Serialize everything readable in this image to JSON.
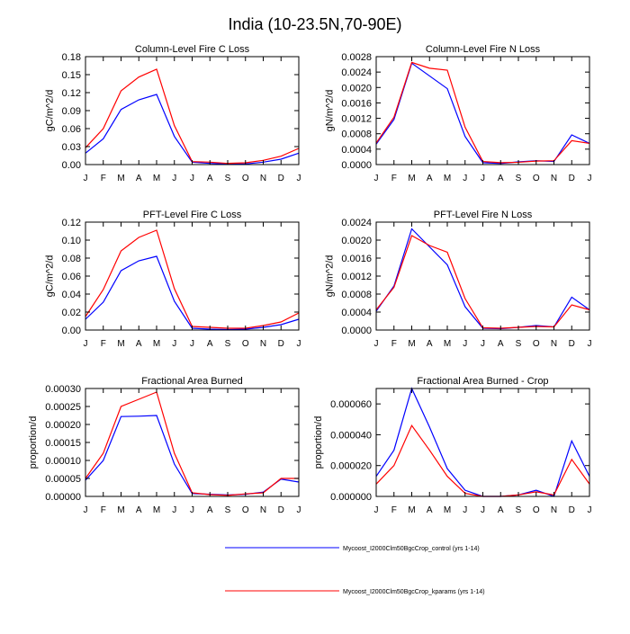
{
  "title": "India (10-23.5N,70-90E)",
  "legend": [
    {
      "label": "Mycoost_I2000Clm50BgcCrop_control (yrs 1-14)",
      "color": "#0000ff"
    },
    {
      "label": "Mycoost_I2000Clm50BgcCrop_kparams (yrs 1-14)",
      "color": "#ff0000"
    }
  ],
  "chart_data": [
    {
      "type": "line",
      "title": "Column-Level Fire C Loss",
      "ylabel": "gC/m^2/d",
      "ylim": [
        0,
        0.18
      ],
      "yticks": [
        "0.00",
        "0.03",
        "0.06",
        "0.09",
        "0.12",
        "0.15",
        "0.18"
      ],
      "categories": [
        "J",
        "F",
        "M",
        "A",
        "M",
        "J",
        "J",
        "A",
        "S",
        "O",
        "N",
        "D",
        "J"
      ],
      "series": [
        {
          "name": "control",
          "values": [
            0.019,
            0.043,
            0.092,
            0.108,
            0.117,
            0.047,
            0.004,
            0.002,
            0.001,
            0.001,
            0.004,
            0.009,
            0.019
          ]
        },
        {
          "name": "kparams",
          "values": [
            0.028,
            0.06,
            0.123,
            0.146,
            0.159,
            0.065,
            0.005,
            0.004,
            0.002,
            0.003,
            0.007,
            0.014,
            0.027
          ]
        }
      ]
    },
    {
      "type": "line",
      "title": "Column-Level Fire N Loss",
      "ylabel": "gN/m^2/d",
      "ylim": [
        0,
        0.0028
      ],
      "yticks": [
        "0.0000",
        "0.0004",
        "0.0008",
        "0.0012",
        "0.0016",
        "0.0020",
        "0.0024",
        "0.0028"
      ],
      "categories": [
        "J",
        "F",
        "M",
        "A",
        "M",
        "J",
        "J",
        "A",
        "S",
        "O",
        "N",
        "D",
        "J"
      ],
      "series": [
        {
          "name": "control",
          "values": [
            0.00053,
            0.00117,
            0.00263,
            0.0023,
            0.00197,
            0.00073,
            5e-05,
            3e-05,
            7e-05,
            0.0001,
            8e-05,
            0.00077,
            0.00055
          ]
        },
        {
          "name": "kparams",
          "values": [
            0.00056,
            0.00123,
            0.00265,
            0.0025,
            0.00245,
            0.00097,
            8e-05,
            5e-05,
            6e-05,
            9e-05,
            0.0001,
            0.00062,
            0.00055
          ]
        }
      ]
    },
    {
      "type": "line",
      "title": "PFT-Level Fire C Loss",
      "ylabel": "gC/m^2/d",
      "ylim": [
        0,
        0.12
      ],
      "yticks": [
        "0.00",
        "0.02",
        "0.04",
        "0.06",
        "0.08",
        "0.10",
        "0.12"
      ],
      "categories": [
        "J",
        "F",
        "M",
        "A",
        "M",
        "J",
        "J",
        "A",
        "S",
        "O",
        "N",
        "D",
        "J"
      ],
      "series": [
        {
          "name": "control",
          "values": [
            0.012,
            0.031,
            0.066,
            0.077,
            0.082,
            0.032,
            0.002,
            0.001,
            0.0005,
            0.001,
            0.003,
            0.006,
            0.012
          ]
        },
        {
          "name": "kparams",
          "values": [
            0.015,
            0.045,
            0.088,
            0.103,
            0.111,
            0.046,
            0.004,
            0.003,
            0.002,
            0.002,
            0.005,
            0.009,
            0.019
          ]
        }
      ]
    },
    {
      "type": "line",
      "title": "PFT-Level Fire N Loss",
      "ylabel": "gN/m^2/d",
      "ylim": [
        0,
        0.0024
      ],
      "yticks": [
        "0.0000",
        "0.0004",
        "0.0008",
        "0.0012",
        "0.0016",
        "0.0020",
        "0.0024"
      ],
      "categories": [
        "J",
        "F",
        "M",
        "A",
        "M",
        "J",
        "J",
        "A",
        "S",
        "O",
        "N",
        "D",
        "J"
      ],
      "series": [
        {
          "name": "control",
          "values": [
            0.00042,
            0.00098,
            0.00225,
            0.00185,
            0.00145,
            0.00052,
            4e-05,
            3e-05,
            6e-05,
            0.0001,
            7e-05,
            0.00073,
            0.00045
          ]
        },
        {
          "name": "kparams",
          "values": [
            0.00045,
            0.00095,
            0.0021,
            0.00188,
            0.00173,
            0.0007,
            5e-05,
            4e-05,
            6e-05,
            8e-05,
            7e-05,
            0.00056,
            0.00045
          ]
        }
      ]
    },
    {
      "type": "line",
      "title": "Fractional Area Burned",
      "ylabel": "proportion/d",
      "ylim": [
        0,
        0.0003
      ],
      "yticks": [
        "0.00000",
        "0.00005",
        "0.00010",
        "0.00015",
        "0.00020",
        "0.00025",
        "0.00030"
      ],
      "categories": [
        "J",
        "F",
        "M",
        "A",
        "M",
        "J",
        "J",
        "A",
        "S",
        "O",
        "N",
        "D",
        "J"
      ],
      "series": [
        {
          "name": "control",
          "values": [
            4.5e-05,
            0.0001,
            0.000222,
            0.000223,
            0.000225,
            9e-05,
            8e-06,
            6e-06,
            4e-06,
            6e-06,
            1.2e-05,
            4.8e-05,
            4e-05
          ]
        },
        {
          "name": "kparams",
          "values": [
            5e-05,
            0.00012,
            0.00025,
            0.00027,
            0.00029,
            0.00012,
            1e-05,
            5e-06,
            3e-06,
            7e-06,
            1e-05,
            5e-05,
            5e-05
          ]
        }
      ]
    },
    {
      "type": "line",
      "title": "Fractional Area Burned - Crop",
      "ylabel": "proportion/d",
      "ylim": [
        0,
        7e-05
      ],
      "yticks": [
        "0.000000",
        "0.000020",
        "0.000040",
        "0.000060"
      ],
      "categories": [
        "J",
        "F",
        "M",
        "A",
        "M",
        "J",
        "J",
        "A",
        "S",
        "O",
        "N",
        "D",
        "J"
      ],
      "series": [
        {
          "name": "control",
          "values": [
            1.3e-05,
            3e-05,
            7e-05,
            4.5e-05,
            1.8e-05,
            4e-06,
            0,
            0,
            1e-06,
            4e-06,
            0,
            3.6e-05,
            1.3e-05
          ]
        },
        {
          "name": "kparams",
          "values": [
            8e-06,
            2e-05,
            4.6e-05,
            3e-05,
            1.3e-05,
            2e-06,
            0,
            0,
            1e-06,
            3e-06,
            1e-06,
            2.4e-05,
            8e-06
          ]
        }
      ]
    }
  ]
}
